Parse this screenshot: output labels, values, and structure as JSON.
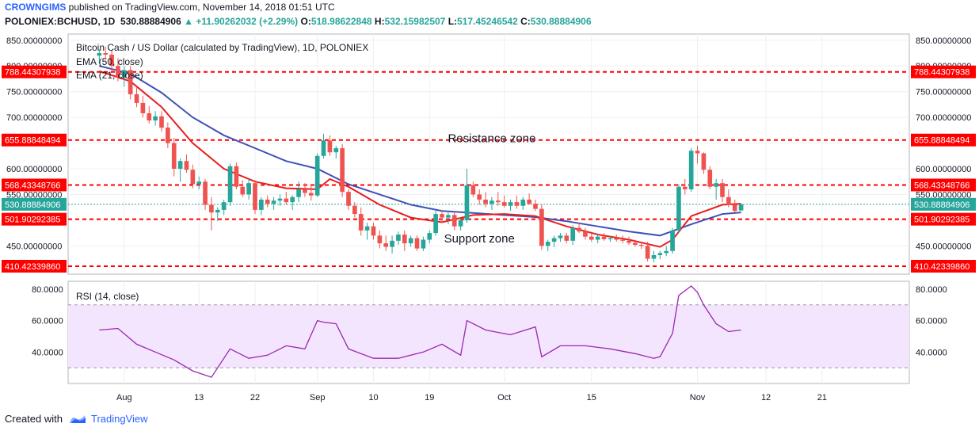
{
  "header": {
    "author": "CROWNGIMS",
    "published": "published on TradingView.com, November 14, 2018 01:51 UTC",
    "symbol": "POLONIEX:BCHUSD, 1D",
    "last": "530.88884906",
    "change": "+11.90262032 (+2.29%)",
    "o_label": "O:",
    "o": "518.98622848",
    "h_label": "H:",
    "h": "532.15982507",
    "l_label": "L:",
    "l": "517.45246542",
    "c_label": "C:",
    "c": "530.88884906"
  },
  "footer": {
    "created_with": "Created with",
    "brand": "TradingView"
  },
  "colors": {
    "bull": "#26a69a",
    "bear": "#ef5350",
    "ema50": "#3f51b5",
    "ema21": "#e91e1e",
    "level": "#ff0000",
    "rsi": "#9c27b0",
    "rsi_band": "#f3e5fd",
    "price_line": "#26a69a"
  },
  "chart_data": [
    {
      "type": "candlestick",
      "title": "Bitcoin Cash / US Dollar (calculated by TradingView), 1D, POLONIEX",
      "legend": [
        "EMA (50, close)",
        "EMA (21, close)"
      ],
      "ylim": [
        395,
        862
      ],
      "y_ticks": [
        450,
        500,
        550,
        600,
        650,
        700,
        750,
        800,
        850
      ],
      "y_tick_labels": [
        "450.00000000",
        "500.00000000",
        "550.00000000",
        "600.00000000",
        "650.00000000",
        "700.00000000",
        "750.00000000",
        "800.00000000",
        "850.00000000"
      ],
      "x_tick_labels": [
        "Aug",
        "13",
        "22",
        "Sep",
        "10",
        "19",
        "Oct",
        "15",
        "Nov",
        "12",
        "21"
      ],
      "x_tick_days": [
        4,
        16,
        25,
        35,
        44,
        53,
        65,
        79,
        96,
        107,
        116
      ],
      "x_domain": [
        -5,
        130
      ],
      "current_price": 530.88884906,
      "current_price_label": "530.88884906",
      "levels": [
        {
          "value": 788.44307938,
          "label": "788.44307938"
        },
        {
          "value": 655.88848494,
          "label": "655.88848494"
        },
        {
          "value": 568.43348766,
          "label": "568.43348766"
        },
        {
          "value": 501.90292385,
          "label": "501.90292385"
        },
        {
          "value": 410.4233986,
          "label": "410.42339860"
        }
      ],
      "annotations": [
        "Resistance zone",
        "Support zone"
      ],
      "annotation_prices": [
        652,
        457
      ],
      "annotation_days": [
        63,
        61
      ],
      "candles": [
        [
          0,
          820,
          832,
          805,
          825
        ],
        [
          1,
          825,
          838,
          812,
          822
        ],
        [
          2,
          822,
          830,
          790,
          800
        ],
        [
          3,
          800,
          815,
          770,
          778
        ],
        [
          4,
          778,
          800,
          760,
          792
        ],
        [
          5,
          792,
          800,
          735,
          745
        ],
        [
          6,
          745,
          760,
          720,
          728
        ],
        [
          7,
          728,
          742,
          700,
          708
        ],
        [
          8,
          708,
          722,
          688,
          694
        ],
        [
          9,
          694,
          712,
          684,
          702
        ],
        [
          10,
          702,
          712,
          672,
          680
        ],
        [
          11,
          680,
          690,
          640,
          650
        ],
        [
          12,
          650,
          660,
          585,
          600
        ],
        [
          13,
          600,
          620,
          575,
          615
        ],
        [
          14,
          615,
          628,
          592,
          598
        ],
        [
          15,
          598,
          608,
          562,
          570
        ],
        [
          16,
          570,
          585,
          560,
          575
        ],
        [
          17,
          575,
          580,
          520,
          530
        ],
        [
          18,
          530,
          545,
          480,
          515
        ],
        [
          19,
          515,
          525,
          498,
          520
        ],
        [
          20,
          520,
          540,
          510,
          535
        ],
        [
          21,
          535,
          610,
          528,
          605
        ],
        [
          22,
          605,
          612,
          560,
          565
        ],
        [
          23,
          565,
          578,
          545,
          550
        ],
        [
          24,
          550,
          580,
          540,
          572
        ],
        [
          25,
          572,
          578,
          512,
          520
        ],
        [
          26,
          520,
          545,
          510,
          540
        ],
        [
          27,
          540,
          548,
          525,
          532
        ],
        [
          28,
          532,
          545,
          520,
          538
        ],
        [
          29,
          538,
          550,
          528,
          542
        ],
        [
          30,
          542,
          555,
          530,
          535
        ],
        [
          31,
          535,
          548,
          520,
          545
        ],
        [
          32,
          545,
          575,
          535,
          560
        ],
        [
          33,
          560,
          572,
          545,
          553
        ],
        [
          34,
          553,
          568,
          538,
          548
        ],
        [
          35,
          548,
          630,
          545,
          625
        ],
        [
          36,
          625,
          668,
          620,
          655
        ],
        [
          37,
          655,
          665,
          625,
          632
        ],
        [
          38,
          632,
          645,
          620,
          640
        ],
        [
          39,
          640,
          648,
          545,
          555
        ],
        [
          40,
          555,
          560,
          520,
          528
        ],
        [
          41,
          528,
          535,
          505,
          512
        ],
        [
          42,
          512,
          525,
          470,
          480
        ],
        [
          43,
          480,
          495,
          462,
          488
        ],
        [
          44,
          488,
          495,
          462,
          470
        ],
        [
          45,
          470,
          480,
          445,
          455
        ],
        [
          46,
          455,
          470,
          440,
          448
        ],
        [
          47,
          448,
          470,
          435,
          460
        ],
        [
          48,
          460,
          478,
          452,
          472
        ],
        [
          49,
          472,
          480,
          440,
          455
        ],
        [
          50,
          455,
          470,
          448,
          465
        ],
        [
          51,
          465,
          470,
          440,
          445
        ],
        [
          52,
          445,
          468,
          440,
          462
        ],
        [
          53,
          462,
          480,
          455,
          475
        ],
        [
          54,
          475,
          520,
          470,
          512
        ],
        [
          55,
          512,
          520,
          495,
          505
        ],
        [
          56,
          505,
          515,
          492,
          510
        ],
        [
          57,
          510,
          518,
          480,
          488
        ],
        [
          58,
          488,
          505,
          480,
          500
        ],
        [
          59,
          500,
          600,
          495,
          568
        ],
        [
          60,
          568,
          575,
          545,
          550
        ],
        [
          61,
          550,
          560,
          530,
          540
        ],
        [
          62,
          540,
          555,
          525,
          532
        ],
        [
          63,
          532,
          545,
          520,
          538
        ],
        [
          64,
          538,
          555,
          528,
          535
        ],
        [
          65,
          535,
          548,
          525,
          528
        ],
        [
          66,
          528,
          540,
          518,
          535
        ],
        [
          67,
          535,
          548,
          522,
          528
        ],
        [
          68,
          528,
          545,
          520,
          540
        ],
        [
          69,
          540,
          552,
          530,
          532
        ],
        [
          70,
          532,
          540,
          518,
          522
        ],
        [
          71,
          522,
          530,
          442,
          450
        ],
        [
          72,
          450,
          462,
          440,
          458
        ],
        [
          73,
          458,
          470,
          448,
          465
        ],
        [
          74,
          465,
          475,
          458,
          470
        ],
        [
          75,
          470,
          475,
          455,
          460
        ],
        [
          76,
          460,
          490,
          452,
          485
        ],
        [
          77,
          485,
          495,
          475,
          478
        ],
        [
          78,
          478,
          485,
          462,
          468
        ],
        [
          79,
          468,
          475,
          458,
          462
        ],
        [
          80,
          462,
          472,
          455,
          468
        ],
        [
          81,
          468,
          475,
          460,
          463
        ],
        [
          82,
          463,
          470,
          458,
          465
        ],
        [
          83,
          465,
          472,
          458,
          462
        ],
        [
          84,
          462,
          470,
          455,
          460
        ],
        [
          85,
          460,
          468,
          452,
          456
        ],
        [
          86,
          456,
          462,
          448,
          452
        ],
        [
          87,
          452,
          458,
          444,
          450
        ],
        [
          88,
          450,
          458,
          420,
          425
        ],
        [
          89,
          425,
          440,
          418,
          432
        ],
        [
          90,
          432,
          440,
          424,
          436
        ],
        [
          91,
          436,
          450,
          430,
          440
        ],
        [
          92,
          440,
          485,
          435,
          480
        ],
        [
          93,
          480,
          570,
          475,
          565
        ],
        [
          94,
          565,
          580,
          550,
          560
        ],
        [
          95,
          560,
          640,
          555,
          635
        ],
        [
          96,
          635,
          645,
          610,
          630
        ],
        [
          97,
          630,
          632,
          590,
          598
        ],
        [
          98,
          598,
          605,
          560,
          565
        ],
        [
          99,
          565,
          580,
          540,
          572
        ],
        [
          100,
          572,
          580,
          535,
          545
        ],
        [
          101,
          545,
          560,
          525,
          530
        ],
        [
          102,
          530,
          540,
          515,
          518
        ],
        [
          103,
          518.98622848,
          532.15982507,
          517.45246542,
          530.88884906
        ]
      ],
      "ema50": [
        [
          0,
          800
        ],
        [
          5,
          785
        ],
        [
          10,
          748
        ],
        [
          15,
          700
        ],
        [
          20,
          665
        ],
        [
          25,
          640
        ],
        [
          30,
          615
        ],
        [
          35,
          600
        ],
        [
          40,
          570
        ],
        [
          45,
          550
        ],
        [
          50,
          530
        ],
        [
          55,
          518
        ],
        [
          60,
          514
        ],
        [
          65,
          510
        ],
        [
          70,
          506
        ],
        [
          75,
          498
        ],
        [
          80,
          488
        ],
        [
          85,
          478
        ],
        [
          90,
          470
        ],
        [
          95,
          492
        ],
        [
          100,
          512
        ],
        [
          103,
          515
        ]
      ],
      "ema21": [
        [
          0,
          790
        ],
        [
          5,
          770
        ],
        [
          10,
          720
        ],
        [
          15,
          650
        ],
        [
          20,
          600
        ],
        [
          25,
          575
        ],
        [
          30,
          562
        ],
        [
          35,
          560
        ],
        [
          37,
          580
        ],
        [
          40,
          565
        ],
        [
          45,
          530
        ],
        [
          50,
          505
        ],
        [
          55,
          496
        ],
        [
          60,
          510
        ],
        [
          65,
          512
        ],
        [
          70,
          508
        ],
        [
          75,
          488
        ],
        [
          80,
          472
        ],
        [
          85,
          462
        ],
        [
          90,
          448
        ],
        [
          92,
          462
        ],
        [
          95,
          508
        ],
        [
          100,
          530
        ],
        [
          103,
          532
        ]
      ]
    },
    {
      "type": "line",
      "title": "RSI (14, close)",
      "ylim": [
        20,
        85
      ],
      "y_ticks": [
        40,
        60,
        80
      ],
      "y_tick_labels": [
        "40.0000",
        "60.0000",
        "80.0000"
      ],
      "band": [
        30,
        70
      ],
      "x": [
        0,
        3,
        6,
        9,
        12,
        15,
        18,
        21,
        24,
        27,
        30,
        33,
        35,
        36,
        38,
        40,
        44,
        48,
        52,
        55,
        58,
        59,
        62,
        66,
        70,
        71,
        74,
        78,
        82,
        86,
        89,
        90,
        92,
        93,
        95,
        96,
        97,
        99,
        101,
        103
      ],
      "values": [
        54,
        55,
        45,
        40,
        35,
        28,
        24,
        42,
        36,
        38,
        44,
        42,
        60,
        59,
        58,
        42,
        36,
        36,
        40,
        45,
        38,
        60,
        54,
        51,
        56,
        37,
        44,
        44,
        42,
        39,
        36,
        37,
        52,
        76,
        82,
        78,
        70,
        58,
        53,
        54
      ]
    }
  ]
}
